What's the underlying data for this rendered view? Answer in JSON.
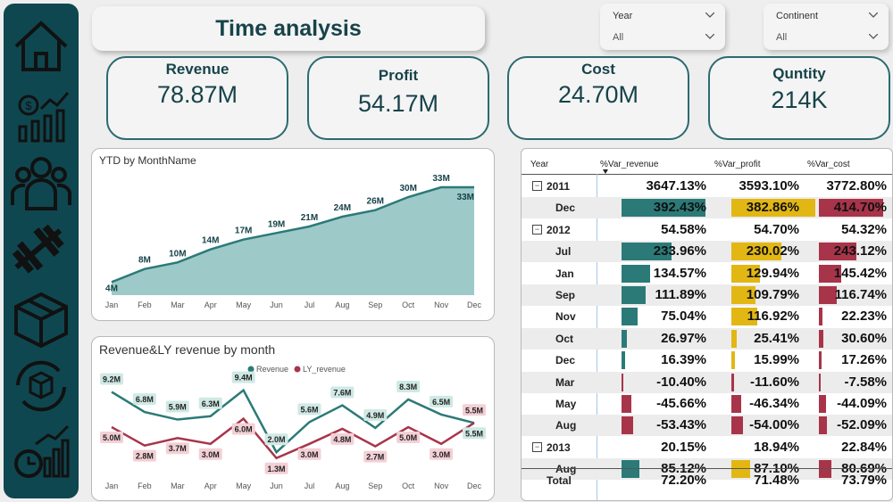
{
  "nav": {
    "items": [
      {
        "name": "home"
      },
      {
        "name": "revenue-chart"
      },
      {
        "name": "customers"
      },
      {
        "name": "fitness"
      },
      {
        "name": "product-box"
      },
      {
        "name": "box-cycle"
      },
      {
        "name": "time-analysis"
      }
    ]
  },
  "header": {
    "title": "Time analysis"
  },
  "filters": [
    {
      "label": "Year",
      "value": "All"
    },
    {
      "label": "Continent",
      "value": "All"
    }
  ],
  "kpis": [
    {
      "label": "Revenue",
      "value": "78.87M"
    },
    {
      "label": "Profit",
      "value": "54.17M"
    },
    {
      "label": "Cost",
      "value": "24.70M"
    },
    {
      "label": "Quntity",
      "value": "214K"
    }
  ],
  "colors": {
    "teal": "#2b7a78",
    "area_fill": "#9ec9c9",
    "red": "#a8344a",
    "yellow": "#e2b714",
    "dark_nav": "#0f4750"
  },
  "chart_data": [
    {
      "type": "area",
      "title": "YTD by MonthName",
      "categories": [
        "Jan",
        "Feb",
        "Mar",
        "Apr",
        "May",
        "Jun",
        "Jul",
        "Aug",
        "Sep",
        "Oct",
        "Nov",
        "Dec"
      ],
      "values": [
        4,
        8,
        10,
        14,
        17,
        19,
        21,
        24,
        26,
        30,
        33,
        33
      ],
      "labels": [
        "4M",
        "8M",
        "10M",
        "14M",
        "17M",
        "19M",
        "21M",
        "24M",
        "26M",
        "30M",
        "33M",
        "33M"
      ],
      "ylim": [
        0,
        36
      ]
    },
    {
      "type": "line",
      "title": "Revenue&LY revenue by month",
      "categories": [
        "Jan",
        "Feb",
        "Mar",
        "Apr",
        "May",
        "Jun",
        "Jul",
        "Aug",
        "Sep",
        "Oct",
        "Nov",
        "Dec"
      ],
      "series": [
        {
          "name": "Revenue",
          "values": [
            9.2,
            6.8,
            5.9,
            6.3,
            9.4,
            2.0,
            5.6,
            7.6,
            4.9,
            8.3,
            6.5,
            5.5
          ],
          "labels": [
            "9.2M",
            "6.8M",
            "5.9M",
            "6.3M",
            "9.4M",
            "2.0M",
            "5.6M",
            "7.6M",
            "4.9M",
            "8.3M",
            "6.5M",
            "5.5M"
          ]
        },
        {
          "name": "LY_revenue",
          "values": [
            5.0,
            2.8,
            3.7,
            3.0,
            6.0,
            1.3,
            3.0,
            4.8,
            2.7,
            5.0,
            3.0,
            5.5
          ],
          "labels": [
            "5.0M",
            "2.8M",
            "3.7M",
            "3.0M",
            "6.0M",
            "1.3M",
            "3.0M",
            "4.8M",
            "2.7M",
            "5.0M",
            "3.0M",
            "5.5M"
          ]
        }
      ],
      "legend": "top-center",
      "ylim": [
        0,
        10
      ]
    }
  ],
  "table": {
    "columns": [
      "Year",
      "%Var_revenue",
      "%Var_profit",
      "%Var_cost"
    ],
    "rows": [
      {
        "kind": "year",
        "label": "2011",
        "rev": "3647.13%",
        "prof": "3593.10%",
        "cost": "3772.80%"
      },
      {
        "kind": "month",
        "label": "Dec",
        "rev": "392.43%",
        "prof": "382.86%",
        "cost": "414.70%",
        "rv": 392.43,
        "pv": 382.86,
        "cv": 414.7
      },
      {
        "kind": "year",
        "label": "2012",
        "rev": "54.58%",
        "prof": "54.70%",
        "cost": "54.32%"
      },
      {
        "kind": "month",
        "label": "Jul",
        "rev": "233.96%",
        "prof": "230.02%",
        "cost": "243.12%",
        "rv": 233.96,
        "pv": 230.02,
        "cv": 243.12
      },
      {
        "kind": "month",
        "label": "Jan",
        "rev": "134.57%",
        "prof": "129.94%",
        "cost": "145.42%",
        "rv": 134.57,
        "pv": 129.94,
        "cv": 145.42
      },
      {
        "kind": "month",
        "label": "Sep",
        "rev": "111.89%",
        "prof": "109.79%",
        "cost": "116.74%",
        "rv": 111.89,
        "pv": 109.79,
        "cv": 116.74
      },
      {
        "kind": "month",
        "label": "Nov",
        "rev": "75.04%",
        "prof": "116.92%",
        "cost": "22.23%",
        "rv": 75.04,
        "pv": 116.92,
        "cv": 22.23
      },
      {
        "kind": "month",
        "label": "Oct",
        "rev": "26.97%",
        "prof": "25.41%",
        "cost": "30.60%",
        "rv": 26.97,
        "pv": 25.41,
        "cv": 30.6
      },
      {
        "kind": "month",
        "label": "Dec",
        "rev": "16.39%",
        "prof": "15.99%",
        "cost": "17.26%",
        "rv": 16.39,
        "pv": 15.99,
        "cv": 17.26
      },
      {
        "kind": "month",
        "label": "Mar",
        "rev": "-10.40%",
        "prof": "-11.60%",
        "cost": "-7.58%",
        "rv": -10.4,
        "pv": -11.6,
        "cv": -7.58
      },
      {
        "kind": "month",
        "label": "May",
        "rev": "-45.66%",
        "prof": "-46.34%",
        "cost": "-44.09%",
        "rv": -45.66,
        "pv": -46.34,
        "cv": -44.09
      },
      {
        "kind": "month",
        "label": "Aug",
        "rev": "-53.43%",
        "prof": "-54.00%",
        "cost": "-52.09%",
        "rv": -53.43,
        "pv": -54.0,
        "cv": -52.09
      },
      {
        "kind": "year",
        "label": "2013",
        "rev": "20.15%",
        "prof": "18.94%",
        "cost": "22.84%"
      },
      {
        "kind": "month",
        "label": "Aug",
        "rev": "85.12%",
        "prof": "87.10%",
        "cost": "80.69%",
        "rv": 85.12,
        "pv": 87.1,
        "cv": 80.69
      }
    ],
    "total": {
      "label": "Total",
      "rev": "72.20%",
      "prof": "71.48%",
      "cost": "73.79%"
    }
  }
}
